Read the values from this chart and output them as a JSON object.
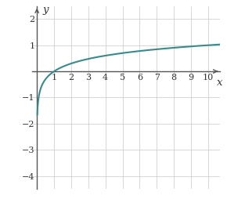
{
  "x_min": -0.3,
  "x_max": 10.7,
  "y_min": -4.5,
  "y_max": 2.5,
  "x_ticks": [
    1,
    2,
    3,
    4,
    5,
    6,
    7,
    8,
    9,
    10
  ],
  "y_ticks": [
    -4,
    -3,
    -2,
    -1,
    1,
    2
  ],
  "curve_color": "#3a8a8a",
  "curve_linewidth": 1.5,
  "grid_color": "#c8c8c8",
  "grid_linewidth": 0.5,
  "axis_color": "#555555",
  "xlabel": "x",
  "ylabel": "y",
  "background_color": "#ffffff",
  "x_start": 0.022,
  "log_base": 10,
  "tick_fontsize": 8.0,
  "label_fontsize": 9.5
}
